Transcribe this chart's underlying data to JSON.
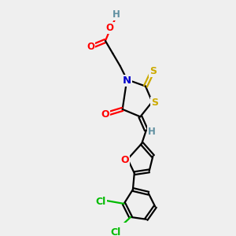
{
  "bg_color": "#efefef",
  "atom_colors": {
    "C": "#000000",
    "H": "#5f8fa0",
    "O": "#ff0000",
    "N": "#0000cc",
    "S": "#ccaa00",
    "Cl": "#00bb00"
  },
  "bond_color": "#000000",
  "figsize": [
    3.0,
    3.0
  ],
  "dpi": 100,
  "lw": 1.6
}
